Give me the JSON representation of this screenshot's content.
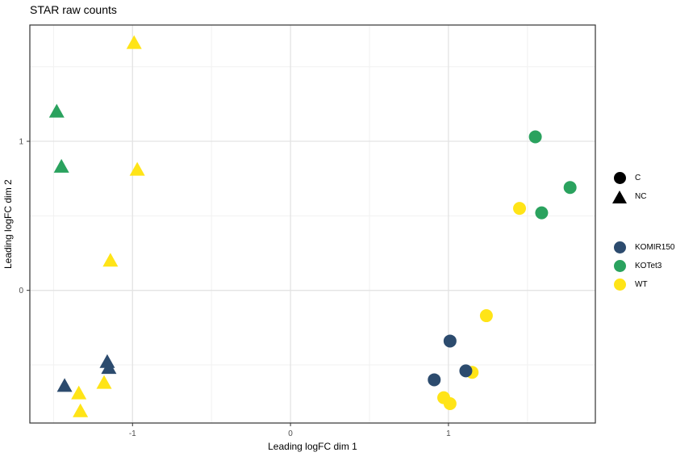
{
  "title": "STAR raw counts",
  "legend": {
    "shape": {
      "key_color": "#000000",
      "items": [
        {
          "label": "C",
          "shape": "circle"
        },
        {
          "label": "NC",
          "shape": "triangle"
        }
      ]
    },
    "color": {
      "items": [
        {
          "label": "KOMIR150",
          "color": "#2c4b6e"
        },
        {
          "label": "KOTet3",
          "color": "#2aa25e"
        },
        {
          "label": "WT",
          "color": "#ffe417"
        }
      ]
    }
  },
  "chart_data": {
    "type": "scatter",
    "title": "STAR raw counts",
    "xlabel": "Leading logFC dim 1",
    "ylabel": "Leading logFC dim 2",
    "xlim": [
      -1.65,
      1.93
    ],
    "ylim": [
      -0.89,
      1.78
    ],
    "x_major_ticks": [
      -1,
      0,
      1
    ],
    "y_major_ticks": [
      0,
      1
    ],
    "x_minor_ticks": [
      -1.5,
      -0.5,
      0.5,
      1.5
    ],
    "y_minor_ticks": [
      -0.5,
      0.5,
      1.5
    ],
    "grid": true,
    "legend_position": "right",
    "colors": {
      "major_grid": "#e3e3e3",
      "minor_grid": "#f1f1f1",
      "panel_border": "#333333",
      "tick_label": "#4d4d4d"
    },
    "series": [
      {
        "name": "WT",
        "group": "NC",
        "shape": "triangle",
        "color": "#ffe417",
        "points": [
          [
            -0.99,
            1.66
          ],
          [
            -0.97,
            0.81
          ],
          [
            -1.14,
            0.2
          ],
          [
            -1.18,
            -0.62
          ],
          [
            -1.34,
            -0.69
          ],
          [
            -1.33,
            -0.81
          ]
        ]
      },
      {
        "name": "WT",
        "group": "C",
        "shape": "circle",
        "color": "#ffe417",
        "points": [
          [
            1.24,
            -0.17
          ],
          [
            1.45,
            0.55
          ],
          [
            1.15,
            -0.55
          ],
          [
            0.97,
            -0.72
          ],
          [
            1.01,
            -0.76
          ]
        ]
      },
      {
        "name": "KOTet3",
        "group": "NC",
        "shape": "triangle",
        "color": "#2aa25e",
        "points": [
          [
            -1.48,
            1.2
          ],
          [
            -1.45,
            0.83
          ]
        ]
      },
      {
        "name": "KOTet3",
        "group": "C",
        "shape": "circle",
        "color": "#2aa25e",
        "points": [
          [
            1.55,
            1.03
          ],
          [
            1.77,
            0.69
          ],
          [
            1.59,
            0.52
          ]
        ]
      },
      {
        "name": "KOMIR150",
        "group": "NC",
        "shape": "triangle",
        "color": "#2c4b6e",
        "points": [
          [
            -1.16,
            -0.48
          ],
          [
            -1.15,
            -0.52
          ],
          [
            -1.43,
            -0.64
          ]
        ]
      },
      {
        "name": "KOMIR150",
        "group": "C",
        "shape": "circle",
        "color": "#2c4b6e",
        "points": [
          [
            1.01,
            -0.34
          ],
          [
            1.11,
            -0.54
          ],
          [
            0.91,
            -0.6
          ]
        ]
      }
    ]
  }
}
